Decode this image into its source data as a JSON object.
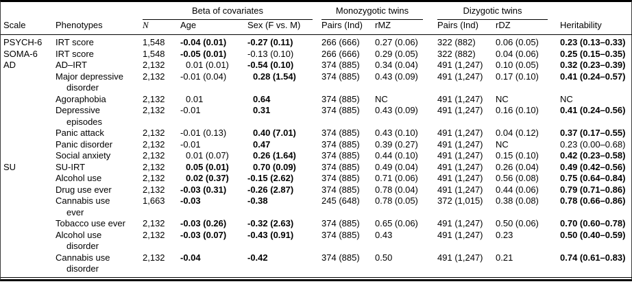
{
  "colors": {
    "text": "#000000",
    "border": "#000000",
    "background": "#ffffff"
  },
  "table": {
    "header": {
      "scale": "Scale",
      "phenotypes": "Phenotypes",
      "beta_group": "Beta of covariates",
      "mz_group": "Monozygotic twins",
      "dz_group": "Dizygotic twins",
      "n": "N",
      "age": "Age",
      "sex": "Sex (F vs. M)",
      "mz_pairs": "Pairs (Ind)",
      "rmz": "rMZ",
      "dz_pairs": "Pairs (Ind)",
      "rdz": "rDZ",
      "heritability": "Heritability"
    },
    "column_keys": [
      "scale",
      "phenotype",
      "n",
      "age",
      "sex",
      "mz_pairs",
      "rmz",
      "dz_pairs",
      "rdz",
      "heritability"
    ],
    "rows": [
      {
        "scale": "PSYCH-6",
        "phenotype": "IRT score",
        "n": "1,548",
        "age": "-0.04 (0.01)",
        "sex": "-0.27 (0.11)",
        "mz_pairs": "266 (666)",
        "rmz": "0.27 (0.06)",
        "dz_pairs": "322 (882)",
        "rdz": "0.06 (0.05)",
        "heritability": "0.23 (0.13–0.33)",
        "bold": [
          "age",
          "sex",
          "heritability"
        ]
      },
      {
        "scale": "SOMA-6",
        "phenotype": "IRT score",
        "n": "1,548",
        "age": "-0.05 (0.01)",
        "sex": "-0.13 (0.10)",
        "mz_pairs": "266 (666)",
        "rmz": "0.29 (0.05)",
        "dz_pairs": "322 (882)",
        "rdz": "0.04 (0.06)",
        "heritability": "0.25 (0.15–0.35)",
        "bold": [
          "age",
          "heritability"
        ]
      },
      {
        "scale": "AD",
        "phenotype": "AD–IRT",
        "n": "2,132",
        "age": "0.01 (0.01)",
        "sex": "-0.54 (0.10)",
        "mz_pairs": "374 (885)",
        "rmz": "0.34 (0.04)",
        "dz_pairs": "491 (1,247)",
        "rdz": "0.10 (0.05)",
        "heritability": "0.32 (0.23–0.39)",
        "bold": [
          "sex",
          "heritability"
        ]
      },
      {
        "scale": "",
        "phenotype": "Major depressive\ndisorder",
        "n": "2,132",
        "age": "-0.01 (0.04)",
        "sex": "0.28 (1.54)",
        "mz_pairs": "374 (885)",
        "rmz": "0.43 (0.09)",
        "dz_pairs": "491 (1,247)",
        "rdz": "0.17 (0.10)",
        "heritability": "0.41 (0.24–0.57)",
        "bold": [
          "sex",
          "heritability"
        ]
      },
      {
        "scale": "",
        "phenotype": "Agoraphobia",
        "n": "2,132",
        "age": "0.01",
        "sex": "0.64",
        "mz_pairs": "374 (885)",
        "rmz": "NC",
        "dz_pairs": "491 (1,247)",
        "rdz": "NC",
        "heritability": "NC",
        "bold": [
          "sex"
        ]
      },
      {
        "scale": "",
        "phenotype": "Depressive\nepisodes",
        "n": "2,132",
        "age": "-0.01",
        "sex": "0.31",
        "mz_pairs": "374 (885)",
        "rmz": "0.43 (0.09)",
        "dz_pairs": "491 (1,247)",
        "rdz": "0.16 (0.10)",
        "heritability": "0.41 (0.24–0.56)",
        "bold": [
          "sex",
          "heritability"
        ]
      },
      {
        "scale": "",
        "phenotype": "Panic attack",
        "n": "2,132",
        "age": "-0.01 (0.13)",
        "sex": "0.40 (7.01)",
        "mz_pairs": "374 (885)",
        "rmz": "0.43 (0.10)",
        "dz_pairs": "491 (1,247)",
        "rdz": "0.04 (0.12)",
        "heritability": "0.37 (0.17–0.55)",
        "bold": [
          "sex",
          "heritability"
        ]
      },
      {
        "scale": "",
        "phenotype": "Panic disorder",
        "n": "2,132",
        "age": "-0.01",
        "sex": "0.47",
        "mz_pairs": "374 (885)",
        "rmz": "0.39 (0.27)",
        "dz_pairs": "491 (1,247)",
        "rdz": "NC",
        "heritability": "0.23 (0.00–0.68)",
        "bold": [
          "sex"
        ]
      },
      {
        "scale": "",
        "phenotype": "Social anxiety",
        "n": "2,132",
        "age": "0.01 (0.07)",
        "sex": "0.26 (1.64)",
        "mz_pairs": "374 (885)",
        "rmz": "0.44 (0.10)",
        "dz_pairs": "491 (1,247)",
        "rdz": "0.15 (0.10)",
        "heritability": "0.42 (0.23–0.58)",
        "bold": [
          "sex",
          "heritability"
        ]
      },
      {
        "scale": "SU",
        "phenotype": "SU-IRT",
        "n": "2,132",
        "age": "0.05 (0.01)",
        "sex": "0.70 (0.09)",
        "mz_pairs": "374 (885)",
        "rmz": "0.49 (0.04)",
        "dz_pairs": "491 (1,247)",
        "rdz": "0.26 (0.04)",
        "heritability": "0.49 (0.42–0.56)",
        "bold": [
          "age",
          "sex",
          "heritability"
        ]
      },
      {
        "scale": "",
        "phenotype": "Alcohol use",
        "n": "2,132",
        "age": "0.02 (0.37)",
        "sex": "-0.15 (2.62)",
        "mz_pairs": "374 (885)",
        "rmz": "0.71 (0.06)",
        "dz_pairs": "491 (1,247)",
        "rdz": "0.56 (0.08)",
        "heritability": "0.75 (0.64–0.84)",
        "bold": [
          "age",
          "sex",
          "heritability"
        ]
      },
      {
        "scale": "",
        "phenotype": "Drug use ever",
        "n": "2,132",
        "age": "-0.03 (0.31)",
        "sex": "-0.26 (2.87)",
        "mz_pairs": "374 (885)",
        "rmz": "0.78 (0.04)",
        "dz_pairs": "491 (1,247)",
        "rdz": "0.44 (0.06)",
        "heritability": "0.79 (0.71–0.86)",
        "bold": [
          "age",
          "sex",
          "heritability"
        ]
      },
      {
        "scale": "",
        "phenotype": "Cannabis use\never",
        "n": "1,663",
        "age": "-0.03",
        "sex": "-0.38",
        "mz_pairs": "245 (648)",
        "rmz": "0.78 (0.05)",
        "dz_pairs": "372 (1,015)",
        "rdz": "0.38 (0.08)",
        "heritability": "0.78 (0.66–0.86)",
        "bold": [
          "age",
          "sex",
          "heritability"
        ]
      },
      {
        "scale": "",
        "phenotype": "Tobacco use ever",
        "n": "2,132",
        "age": "-0.03 (0.26)",
        "sex": "-0.32 (2.63)",
        "mz_pairs": "374 (885)",
        "rmz": "0.65 (0.06)",
        "dz_pairs": "491 (1,247)",
        "rdz": "0.50 (0.06)",
        "heritability": "0.70 (0.60–0.78)",
        "bold": [
          "age",
          "sex",
          "heritability"
        ]
      },
      {
        "scale": "",
        "phenotype": "Alcohol use\ndisorder",
        "n": "2,132",
        "age": "-0.03 (0.07)",
        "sex": "-0.43 (0.91)",
        "mz_pairs": "374 (885)",
        "rmz": "0.43",
        "dz_pairs": "491 (1,247)",
        "rdz": "0.23",
        "heritability": "0.50 (0.40–0.59)",
        "bold": [
          "age",
          "sex",
          "heritability"
        ]
      },
      {
        "scale": "",
        "phenotype": "Cannabis use\ndisorder",
        "n": "2,132",
        "age": "-0.04",
        "sex": "-0.42",
        "mz_pairs": "374 (885)",
        "rmz": "0.50",
        "dz_pairs": "491 (1,247)",
        "rdz": "0.21",
        "heritability": "0.74 (0.61–0.83)",
        "bold": [
          "age",
          "sex",
          "heritability"
        ]
      }
    ]
  }
}
